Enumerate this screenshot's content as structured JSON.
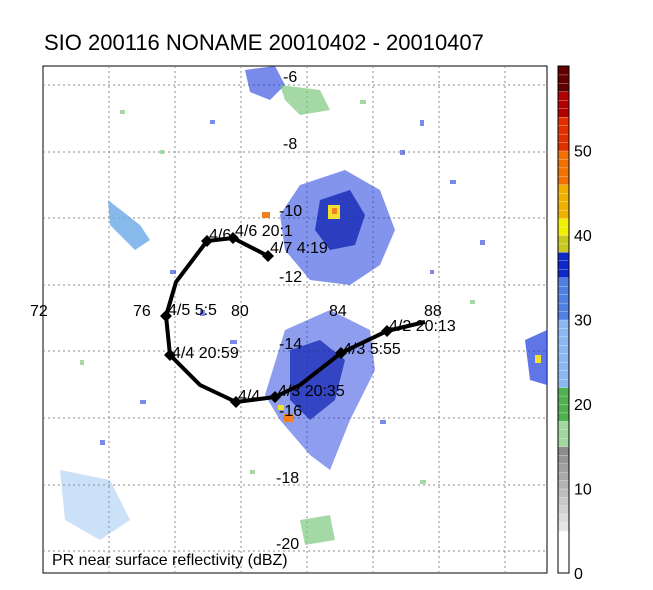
{
  "title": "SIO 200116 NONAME 20010402 - 20010407",
  "caption": "PR near surface reflectivity (dBZ)",
  "lon_labels": [
    "72",
    "76",
    "80",
    "84",
    "88"
  ],
  "lat_labels": [
    "-6",
    "-8",
    "-10",
    "-12",
    "-14",
    "-16",
    "-18",
    "-20"
  ],
  "track_labels": [
    "4/2 20:13",
    "4/3 5:55",
    "4/3 20:35",
    "4/4",
    "4/4 20:59",
    "4/5 5:5",
    "4/6",
    "4/6 20:1",
    "4/7 4:19"
  ],
  "colorbar": {
    "ticks": [
      "0",
      "10",
      "20",
      "30",
      "40",
      "50"
    ],
    "range": [
      0,
      60
    ]
  },
  "colors": {
    "track": "#000000",
    "grid": "#888888",
    "blue_echo": "#1e3cdc",
    "light_echo": "#6aa8e8",
    "green_echo": "#7ec87e",
    "yellow_echo": "#f0e030",
    "orange_echo": "#f08020"
  }
}
